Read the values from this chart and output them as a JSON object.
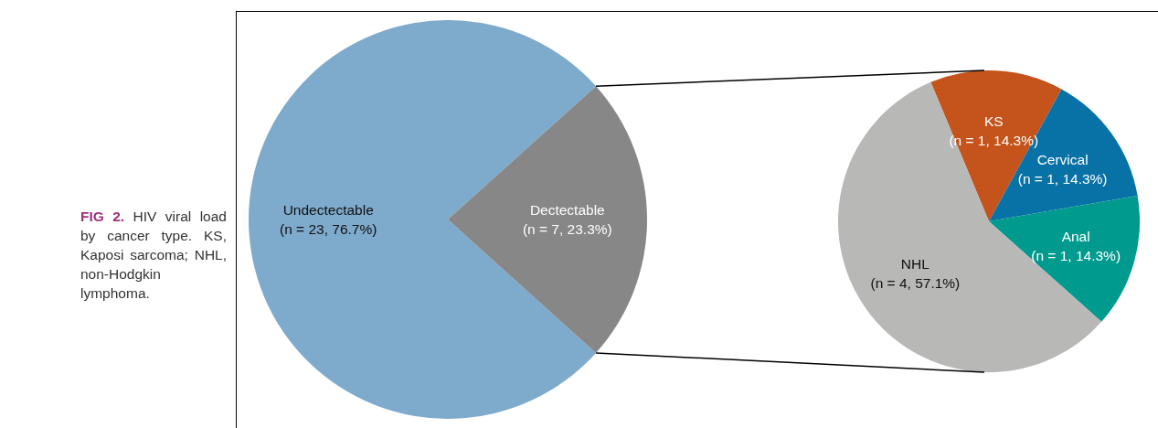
{
  "chart_data": [
    {
      "type": "pie",
      "categories": [
        "Undectectable",
        "Dectectable"
      ],
      "values": [
        23,
        7
      ],
      "colors": [
        "#7eaacc",
        "#878787"
      ],
      "value_labels": [
        "(n = 23, 76.7%)",
        "(n = 7, 23.3%)"
      ],
      "annotations": [
        "FIG 2.",
        "HIV viral load by cancer type. KS, Kaposi sarcoma; NHL, non-Hodgkin lymphoma."
      ]
    },
    {
      "type": "pie",
      "categories": [
        "KS",
        "Cervical",
        "Anal",
        "NHL"
      ],
      "values": [
        14.3,
        14.3,
        14.3,
        57.1
      ],
      "colors": [
        "#c4541b",
        "#0872a6",
        "#009a8e",
        "#b8b8b7"
      ],
      "value_labels": [
        "(n = 1, 14.3%)",
        "(n = 1, 14.3%)",
        "(n = 1, 14.3%)",
        "(n = 4, 57.1%)"
      ]
    }
  ]
}
